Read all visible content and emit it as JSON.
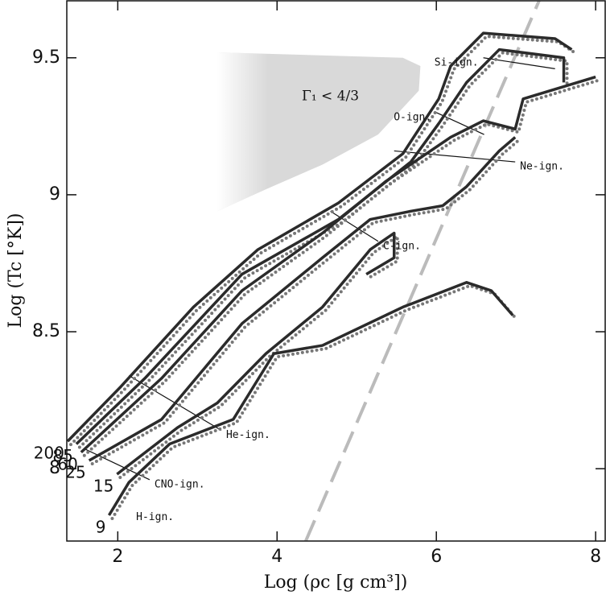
{
  "chart_data": {
    "type": "line",
    "xlabel": "Log (ρc [g cm³])",
    "ylabel": "Log (Tc [°K])",
    "xlim": [
      1.36,
      8.12
    ],
    "ylim": [
      7.736,
      9.708
    ],
    "xticks": [
      2,
      4,
      6,
      8
    ],
    "yticks": [
      8,
      8.5,
      9,
      9.5
    ],
    "series": [
      {
        "name": "200",
        "color": "#2b2b2b",
        "x": [
          1.37,
          2.04,
          2.95,
          3.76,
          4.77,
          5.58,
          6.03,
          6.18,
          6.59,
          7.49,
          7.7
        ],
        "values": [
          8.1,
          8.3,
          8.59,
          8.8,
          8.97,
          9.15,
          9.35,
          9.47,
          9.59,
          9.57,
          9.53
        ]
      },
      {
        "name": "85",
        "color": "#2b2b2b",
        "x": [
          1.48,
          2.34,
          3.56,
          4.77,
          5.68,
          6.03,
          6.38,
          6.79,
          7.6,
          7.6
        ],
        "values": [
          8.09,
          8.33,
          8.71,
          8.91,
          9.12,
          9.26,
          9.41,
          9.53,
          9.5,
          9.41
        ]
      },
      {
        "name": "60",
        "color": "#2b2b2b",
        "x": [
          1.54,
          2.55,
          3.56,
          4.57,
          5.37,
          6.18,
          6.59,
          6.99,
          7.09,
          8.0
        ],
        "values": [
          8.06,
          8.33,
          8.65,
          8.86,
          9.05,
          9.21,
          9.27,
          9.24,
          9.35,
          9.43
        ]
      },
      {
        "name": "25",
        "color": "#2b2b2b",
        "x": [
          1.64,
          2.55,
          3.56,
          4.57,
          5.17,
          5.68,
          6.08,
          6.38,
          6.79,
          6.99
        ],
        "values": [
          8.03,
          8.18,
          8.53,
          8.77,
          8.91,
          8.94,
          8.96,
          9.03,
          9.16,
          9.21
        ]
      },
      {
        "name": "15",
        "color": "#2b2b2b",
        "x": [
          1.99,
          2.75,
          3.25,
          3.86,
          4.57,
          5.17,
          5.47,
          5.47,
          5.12
        ],
        "values": [
          7.98,
          8.15,
          8.24,
          8.42,
          8.59,
          8.8,
          8.86,
          8.77,
          8.71
        ]
      },
      {
        "name": "9",
        "color": "#2b2b2b",
        "x": [
          1.89,
          2.14,
          2.65,
          3.45,
          3.96,
          4.57,
          5.58,
          6.38,
          6.69,
          6.96
        ],
        "values": [
          7.83,
          7.95,
          8.09,
          8.18,
          8.42,
          8.45,
          8.59,
          8.68,
          8.65,
          8.56
        ]
      }
    ],
    "annotations": [
      {
        "text": "H-ign.",
        "x": [
          2.17
        ],
        "y": [
          7.84
        ]
      },
      {
        "text": "CNO-ign.",
        "x": [
          1.6,
          2.4
        ],
        "y": [
          8.07,
          7.96
        ]
      },
      {
        "text": "He-ign.",
        "x": [
          2.14,
          3.3
        ],
        "y": [
          8.34,
          8.14
        ]
      },
      {
        "text": "C-ign.",
        "x": [
          4.67,
          5.27
        ],
        "y": [
          8.94,
          8.83
        ]
      },
      {
        "text": "Ne-ign.",
        "x": [
          5.47,
          6.99
        ],
        "y": [
          9.16,
          9.12
        ]
      },
      {
        "text": "O-ign.",
        "x": [
          6.6,
          6.0
        ],
        "y": [
          9.22,
          9.3
        ]
      },
      {
        "text": "Si-ign.",
        "x": [
          7.49,
          6.59
        ],
        "y": [
          9.46,
          9.5
        ]
      }
    ],
    "region": {
      "label": "Γ₁ < 4/3",
      "color": "#d9d9d9",
      "x": [
        3.25,
        5.58,
        5.8,
        5.78,
        5.27,
        4.57,
        3.86,
        3.25
      ],
      "y": [
        9.52,
        9.5,
        9.47,
        9.38,
        9.22,
        9.11,
        9.02,
        8.94
      ]
    },
    "reference_line": {
      "color": "#bbbbbb",
      "x": [
        4.36,
        7.29
      ],
      "y": [
        7.736,
        9.708
      ]
    }
  }
}
